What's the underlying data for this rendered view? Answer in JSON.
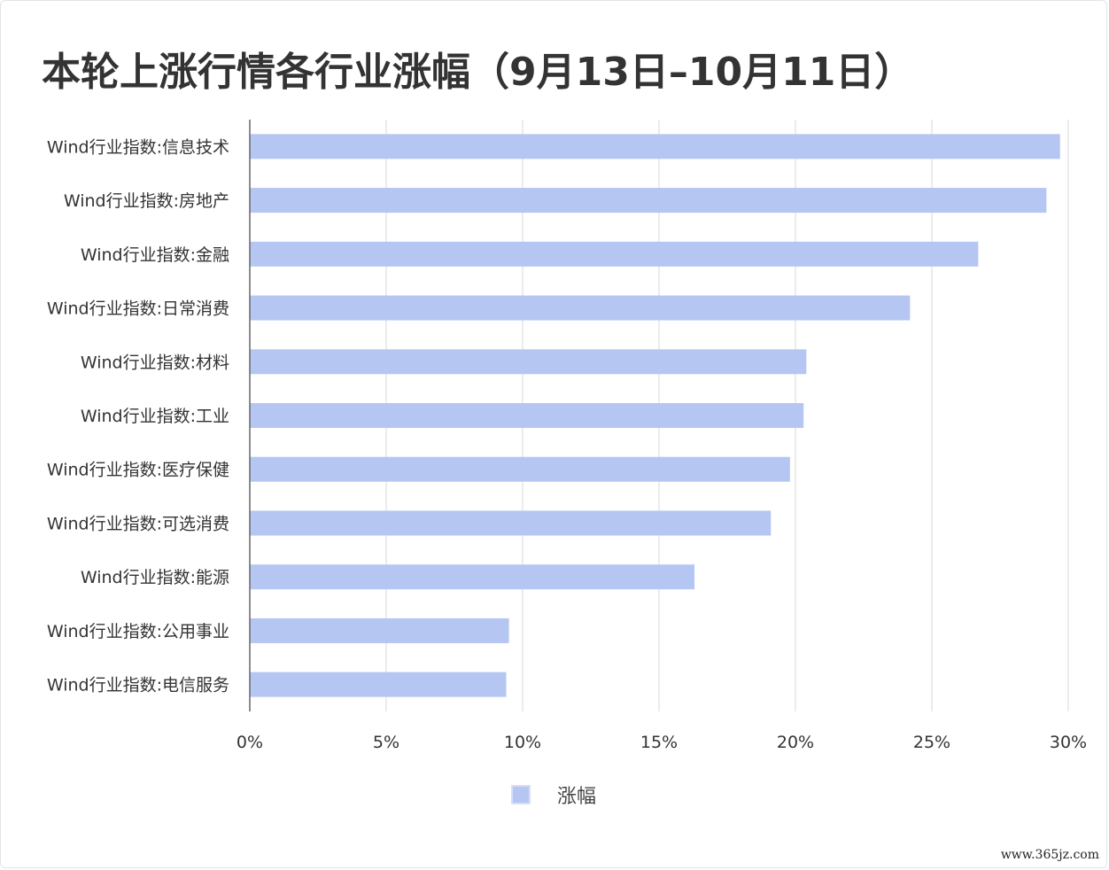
{
  "chart_data": {
    "type": "bar",
    "orientation": "horizontal",
    "title": "本轮上涨行情各行业涨幅（9月13日–10月11日）",
    "categories": [
      "Wind行业指数:信息技术",
      "Wind行业指数:房地产",
      "Wind行业指数:金融",
      "Wind行业指数:日常消费",
      "Wind行业指数:材料",
      "Wind行业指数:工业",
      "Wind行业指数:医疗保健",
      "Wind行业指数:可选消费",
      "Wind行业指数:能源",
      "Wind行业指数:公用事业",
      "Wind行业指数:电信服务"
    ],
    "series": [
      {
        "name": "涨幅",
        "values": [
          29.7,
          29.2,
          26.7,
          24.2,
          20.4,
          20.3,
          19.8,
          19.1,
          16.3,
          9.5,
          9.4
        ]
      }
    ],
    "xlim": [
      0,
      30
    ],
    "xticks": [
      "0%",
      "5%",
      "10%",
      "15%",
      "20%",
      "25%",
      "30%"
    ],
    "xtick_values": [
      0,
      5,
      10,
      15,
      20,
      25,
      30
    ],
    "grid": true,
    "legend_position": "bottom",
    "colors": {
      "bar": "#b5c6f3",
      "grid": "#d9d9d9",
      "axis": "#666666"
    }
  },
  "watermark": "www.365jz.com"
}
